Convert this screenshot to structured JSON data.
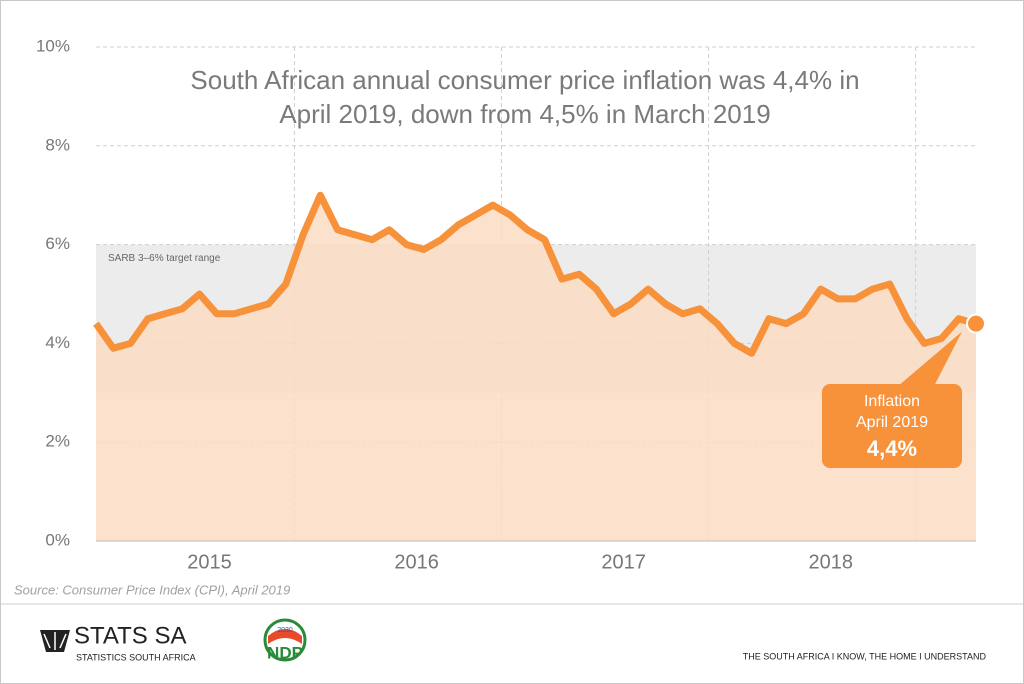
{
  "chart_data": {
    "type": "line",
    "title_lines": [
      "South African annual consumer price inflation was 4,4% in",
      "April 2019, down from 4,5% in March 2019"
    ],
    "categories": [
      null,
      null,
      null,
      null,
      null,
      null,
      "2015",
      null,
      null,
      null,
      null,
      null,
      null,
      null,
      null,
      null,
      null,
      null,
      "2016",
      null,
      null,
      null,
      null,
      null,
      null,
      null,
      null,
      null,
      null,
      null,
      "2017",
      null,
      null,
      null,
      null,
      null,
      null,
      null,
      null,
      null,
      null,
      null,
      "2018",
      null,
      null,
      null,
      null,
      null,
      null,
      null,
      null,
      null
    ],
    "values": [
      4.4,
      3.9,
      4.0,
      4.5,
      4.6,
      4.7,
      5.0,
      4.6,
      4.6,
      4.7,
      4.8,
      5.2,
      6.2,
      7.0,
      6.3,
      6.2,
      6.1,
      6.3,
      6.0,
      5.9,
      6.1,
      6.4,
      6.6,
      6.8,
      6.6,
      6.3,
      6.1,
      5.3,
      5.4,
      5.1,
      4.6,
      4.8,
      5.1,
      4.8,
      4.6,
      4.7,
      4.4,
      4.0,
      3.8,
      4.5,
      4.4,
      4.6,
      5.1,
      4.9,
      4.9,
      5.1,
      5.2,
      4.5,
      4.0,
      4.1,
      4.5,
      4.4
    ],
    "color": "#f7923a",
    "area_color": "#fbdcc4",
    "ylim": [
      0,
      10
    ],
    "yticks": [
      {
        "value": 0,
        "label": "0%"
      },
      {
        "value": 2,
        "label": "2%"
      },
      {
        "value": 4,
        "label": "4%"
      },
      {
        "value": 6,
        "label": "6%"
      },
      {
        "value": 8,
        "label": "8%"
      },
      {
        "value": 10,
        "label": "10%"
      }
    ],
    "grid": true,
    "target_range": [
      3,
      6
    ],
    "target_label": "SARB 3–6% target range",
    "callout": {
      "lines": [
        "Inflation",
        "April 2019"
      ],
      "value_label": "4,4%"
    },
    "source": "Source: Consumer Price Index (CPI), April 2019"
  },
  "footer": {
    "logo": "STATS SA",
    "logo_sub": "STATISTICS SOUTH AFRICA",
    "ndp": "NDP",
    "ndp_year": "2030",
    "slogan": "THE SOUTH AFRICA I KNOW, THE HOME I UNDERSTAND"
  }
}
